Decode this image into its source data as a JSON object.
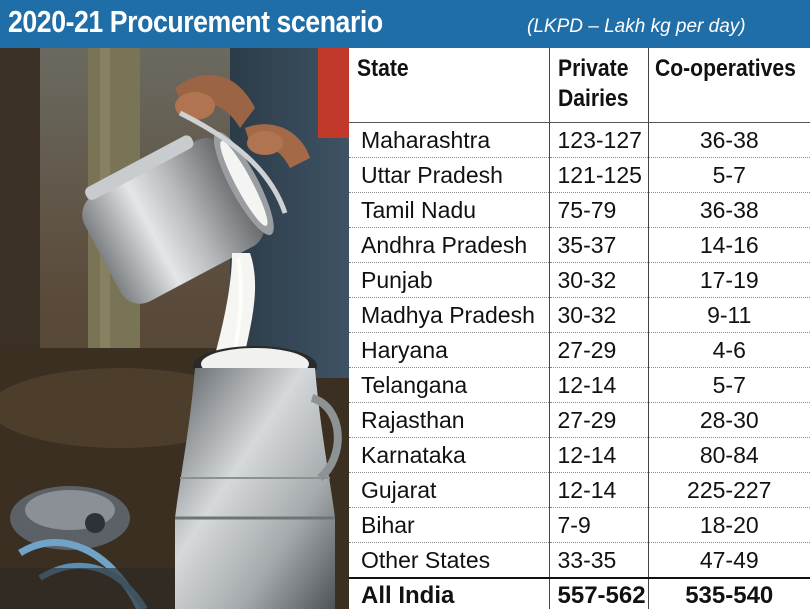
{
  "header": {
    "title": "2020-21 Procurement scenario",
    "unit_note": "(LKPD – Lakh kg per day)",
    "background": "#1f6ea8"
  },
  "table": {
    "columns": [
      "State",
      "Private Dairies",
      "Co-operatives"
    ],
    "rows": [
      {
        "state": "Maharashtra",
        "private": "123-127",
        "coop": "36-38"
      },
      {
        "state": "Uttar Pradesh",
        "private": "121-125",
        "coop": "5-7"
      },
      {
        "state": "Tamil Nadu",
        "private": "75-79",
        "coop": "36-38"
      },
      {
        "state": "Andhra Pradesh",
        "private": "35-37",
        "coop": "14-16"
      },
      {
        "state": "Punjab",
        "private": "30-32",
        "coop": "17-19"
      },
      {
        "state": "Madhya Pradesh",
        "private": "30-32",
        "coop": "9-11"
      },
      {
        "state": "Haryana",
        "private": "27-29",
        "coop": "4-6"
      },
      {
        "state": "Telangana",
        "private": "12-14",
        "coop": "5-7"
      },
      {
        "state": "Rajasthan",
        "private": "27-29",
        "coop": "28-30"
      },
      {
        "state": "Karnataka",
        "private": "12-14",
        "coop": "80-84"
      },
      {
        "state": "Gujarat",
        "private": "12-14",
        "coop": "225-227"
      },
      {
        "state": "Bihar",
        "private": "7-9",
        "coop": "18-20"
      },
      {
        "state": "Other States",
        "private": "33-35",
        "coop": "47-49"
      }
    ],
    "total": {
      "state": "All India",
      "private": "557-562",
      "coop": "535-540"
    }
  }
}
